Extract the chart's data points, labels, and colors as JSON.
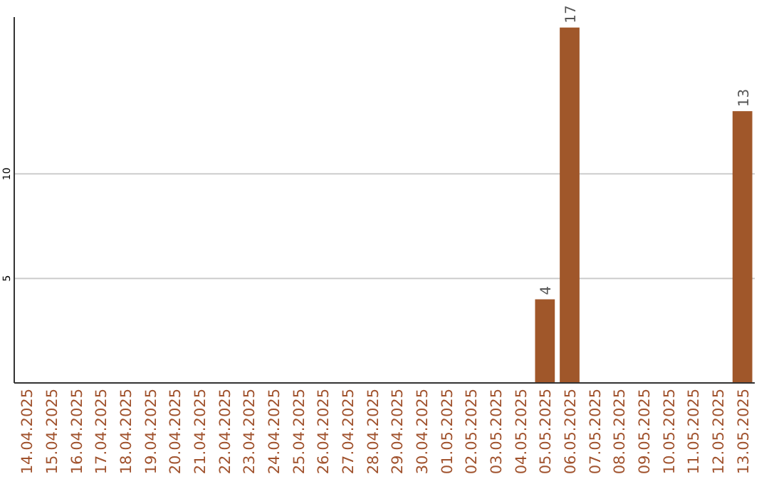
{
  "chart_data": {
    "type": "bar",
    "categories": [
      "14.04.2025",
      "15.04.2025",
      "16.04.2025",
      "17.04.2025",
      "18.04.2025",
      "19.04.2025",
      "20.04.2025",
      "21.04.2025",
      "22.04.2025",
      "23.04.2025",
      "24.04.2025",
      "25.04.2025",
      "26.04.2025",
      "27.04.2025",
      "28.04.2025",
      "29.04.2025",
      "30.04.2025",
      "01.05.2025",
      "02.05.2025",
      "03.05.2025",
      "04.05.2025",
      "05.05.2025",
      "06.05.2025",
      "07.05.2025",
      "08.05.2025",
      "09.05.2025",
      "10.05.2025",
      "11.05.2025",
      "12.05.2025",
      "13.05.2025"
    ],
    "values": [
      0,
      0,
      0,
      0,
      0,
      0,
      0,
      0,
      0,
      0,
      0,
      0,
      0,
      0,
      0,
      0,
      0,
      0,
      0,
      0,
      0,
      4,
      17,
      0,
      0,
      0,
      0,
      0,
      0,
      13
    ],
    "value_labels": [
      null,
      null,
      null,
      null,
      null,
      null,
      null,
      null,
      null,
      null,
      null,
      null,
      null,
      null,
      null,
      null,
      null,
      null,
      null,
      null,
      null,
      "4",
      "17",
      null,
      null,
      null,
      null,
      null,
      null,
      "13"
    ],
    "color": "#a0572a",
    "ylim": [
      0,
      17.5
    ],
    "yticks": [
      5,
      10
    ],
    "grid": "y"
  }
}
